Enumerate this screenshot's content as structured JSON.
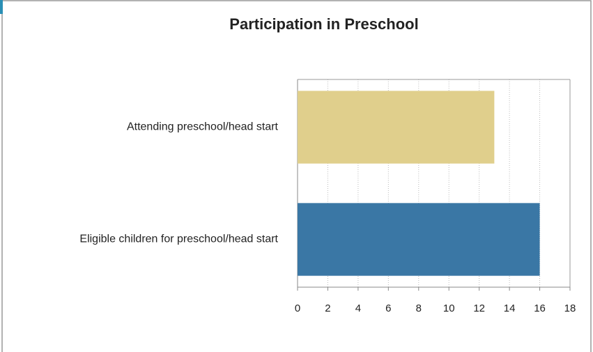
{
  "chart_data": {
    "type": "bar",
    "orientation": "horizontal",
    "title": "Participation in Preschool",
    "categories": [
      "Attending preschool/head start",
      "Eligible children for preschool/head start"
    ],
    "values": [
      13,
      16
    ],
    "colors": [
      "#e0cf8c",
      "#3a77a5"
    ],
    "xlim": [
      0,
      18
    ],
    "xticks": [
      0,
      2,
      4,
      6,
      8,
      10,
      12,
      14,
      16,
      18
    ],
    "grid": true
  }
}
